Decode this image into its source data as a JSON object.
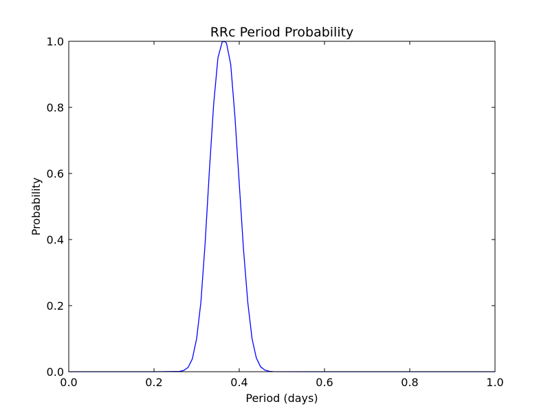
{
  "chart_data": {
    "type": "line",
    "title": "RRc Period Probability",
    "xlabel": "Period (days)",
    "ylabel": "Probability",
    "xlim": [
      0.0,
      1.0
    ],
    "ylim": [
      0.0,
      1.0
    ],
    "x_ticks": [
      "0.0",
      "0.2",
      "0.4",
      "0.6",
      "0.8",
      "1.0"
    ],
    "y_ticks": [
      "0.0",
      "0.2",
      "0.4",
      "0.6",
      "0.8",
      "1.0"
    ],
    "grid": false,
    "legend": "none",
    "series": [
      {
        "color": "#0000ff",
        "x": [
          0.0,
          0.2,
          0.26,
          0.27,
          0.28,
          0.29,
          0.3,
          0.31,
          0.32,
          0.33,
          0.34,
          0.35,
          0.36,
          0.365,
          0.37,
          0.38,
          0.39,
          0.4,
          0.41,
          0.42,
          0.43,
          0.44,
          0.45,
          0.46,
          0.47,
          0.48,
          0.55,
          1.0
        ],
        "y": [
          0.0,
          0.0,
          0.001,
          0.004,
          0.013,
          0.039,
          0.1,
          0.21,
          0.39,
          0.61,
          0.81,
          0.95,
          0.998,
          1.0,
          0.995,
          0.93,
          0.77,
          0.57,
          0.37,
          0.21,
          0.1,
          0.042,
          0.015,
          0.005,
          0.0013,
          0.0003,
          0.0,
          0.0
        ]
      }
    ]
  }
}
